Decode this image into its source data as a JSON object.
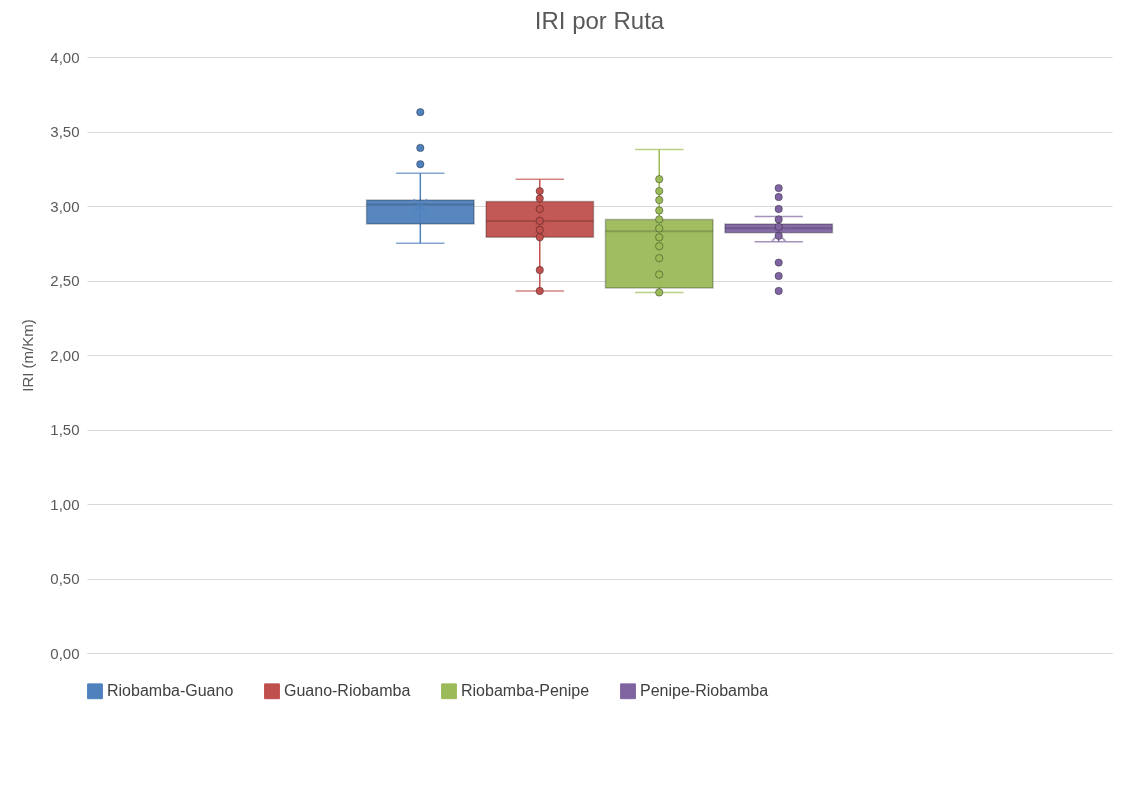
{
  "chart_data": {
    "type": "box",
    "title": "IRI por Ruta",
    "ylabel": "IRI (m/Km)",
    "categories": [
      null
    ],
    "ylim": [
      0,
      4
    ],
    "yticks": [
      {
        "value": 0,
        "label": "0,00"
      },
      {
        "value": 0.5,
        "label": "0,50"
      },
      {
        "value": 1,
        "label": "1,00"
      },
      {
        "value": 1.5,
        "label": "1,50"
      },
      {
        "value": 2,
        "label": "2,00"
      },
      {
        "value": 2.5,
        "label": "2,50"
      },
      {
        "value": 3,
        "label": "3,00"
      },
      {
        "value": 3.5,
        "label": "3,50"
      },
      {
        "value": 4,
        "label": "4,00"
      }
    ],
    "grid": "y",
    "legend": "bottom",
    "series": [
      {
        "name": "Riobamba-Guano",
        "color": "#4f81bd",
        "boxes": [
          {
            "low": 2.75,
            "q1": 2.88,
            "median": 3.01,
            "q3": 3.04,
            "high": 3.22,
            "mean": 3.0,
            "outliers": [
              3.63,
              3.39,
              3.28
            ]
          }
        ]
      },
      {
        "name": "Guano-Riobamba",
        "color": "#c0504d",
        "boxes": [
          {
            "low": 2.43,
            "q1": 2.79,
            "median": 2.9,
            "q3": 3.03,
            "high": 3.18,
            "mean": 2.85,
            "outliers": [
              3.1,
              3.05,
              2.98,
              2.9,
              2.84,
              2.79,
              2.57,
              2.43
            ]
          }
        ]
      },
      {
        "name": "Riobamba-Penipe",
        "color": "#9bbb59",
        "boxes": [
          {
            "low": 2.42,
            "q1": 2.45,
            "median": 2.83,
            "q3": 2.91,
            "high": 3.38,
            "mean": 2.76,
            "outliers": [
              3.18,
              3.1,
              3.04,
              2.97,
              2.91,
              2.85,
              2.79,
              2.73,
              2.65,
              2.54,
              2.42
            ]
          }
        ]
      },
      {
        "name": "Penipe-Riobamba",
        "color": "#8064a2",
        "boxes": [
          {
            "low": 2.76,
            "q1": 2.82,
            "median": 2.85,
            "q3": 2.88,
            "high": 2.93,
            "mean": 2.81,
            "outliers": [
              3.12,
              3.06,
              2.98,
              2.91,
              2.86,
              2.8,
              2.62,
              2.53,
              2.43
            ]
          }
        ]
      }
    ]
  }
}
